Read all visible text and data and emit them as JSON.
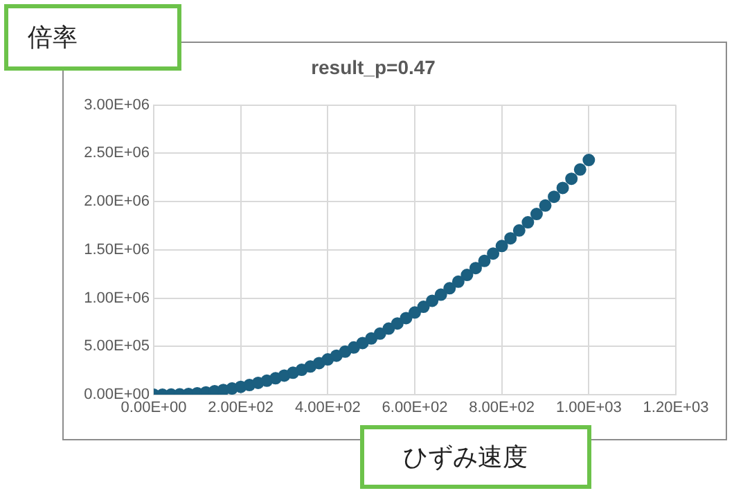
{
  "chart_data": {
    "type": "scatter",
    "title": "result_p=0.47",
    "xlabel": "ひずみ速度",
    "ylabel": "倍率",
    "x": [
      0,
      20,
      40,
      60,
      80,
      100,
      120,
      140,
      160,
      180,
      200,
      220,
      240,
      260,
      280,
      300,
      320,
      340,
      360,
      380,
      400,
      420,
      440,
      460,
      480,
      500,
      520,
      540,
      560,
      580,
      600,
      620,
      640,
      660,
      680,
      700,
      720,
      740,
      760,
      780,
      800,
      820,
      840,
      860,
      880,
      900,
      920,
      940,
      960,
      980,
      1000
    ],
    "series": [
      {
        "color": "#1b5f80",
        "values": [
          0,
          0,
          1000,
          3000,
          8000,
          15000,
          24000,
          36000,
          49000,
          64000,
          81000,
          100000,
          122000,
          145000,
          170000,
          198000,
          227000,
          258000,
          292000,
          327000,
          365000,
          404000,
          446000,
          489000,
          535000,
          582000,
          632000,
          684000,
          737000,
          793000,
          851000,
          910000,
          972000,
          1036000,
          1102000,
          1170000,
          1240000,
          1311000,
          1385000,
          1461000,
          1539000,
          1619000,
          1701000,
          1785000,
          1871000,
          1959000,
          2049000,
          2141000,
          2236000,
          2332000,
          2430000
        ]
      }
    ],
    "xlim": [
      0,
      1200
    ],
    "xticks": [
      {
        "value": 0,
        "label": "0.00E+00"
      },
      {
        "value": 200,
        "label": "2.00E+02"
      },
      {
        "value": 400,
        "label": "4.00E+02"
      },
      {
        "value": 600,
        "label": "6.00E+02"
      },
      {
        "value": 800,
        "label": "8.00E+02"
      },
      {
        "value": 1000,
        "label": "1.00E+03"
      },
      {
        "value": 1200,
        "label": "1.20E+03"
      }
    ],
    "ylim": [
      0,
      3000000
    ],
    "yticks": [
      {
        "value": 0,
        "label": "0.00E+00"
      },
      {
        "value": 500000,
        "label": "5.00E+05"
      },
      {
        "value": 1000000,
        "label": "1.00E+06"
      },
      {
        "value": 1500000,
        "label": "1.50E+06"
      },
      {
        "value": 2000000,
        "label": "2.00E+06"
      },
      {
        "value": 2500000,
        "label": "2.50E+06"
      },
      {
        "value": 3000000,
        "label": "3.00E+06"
      }
    ],
    "grid": true,
    "marker": "circle",
    "legend": false
  }
}
